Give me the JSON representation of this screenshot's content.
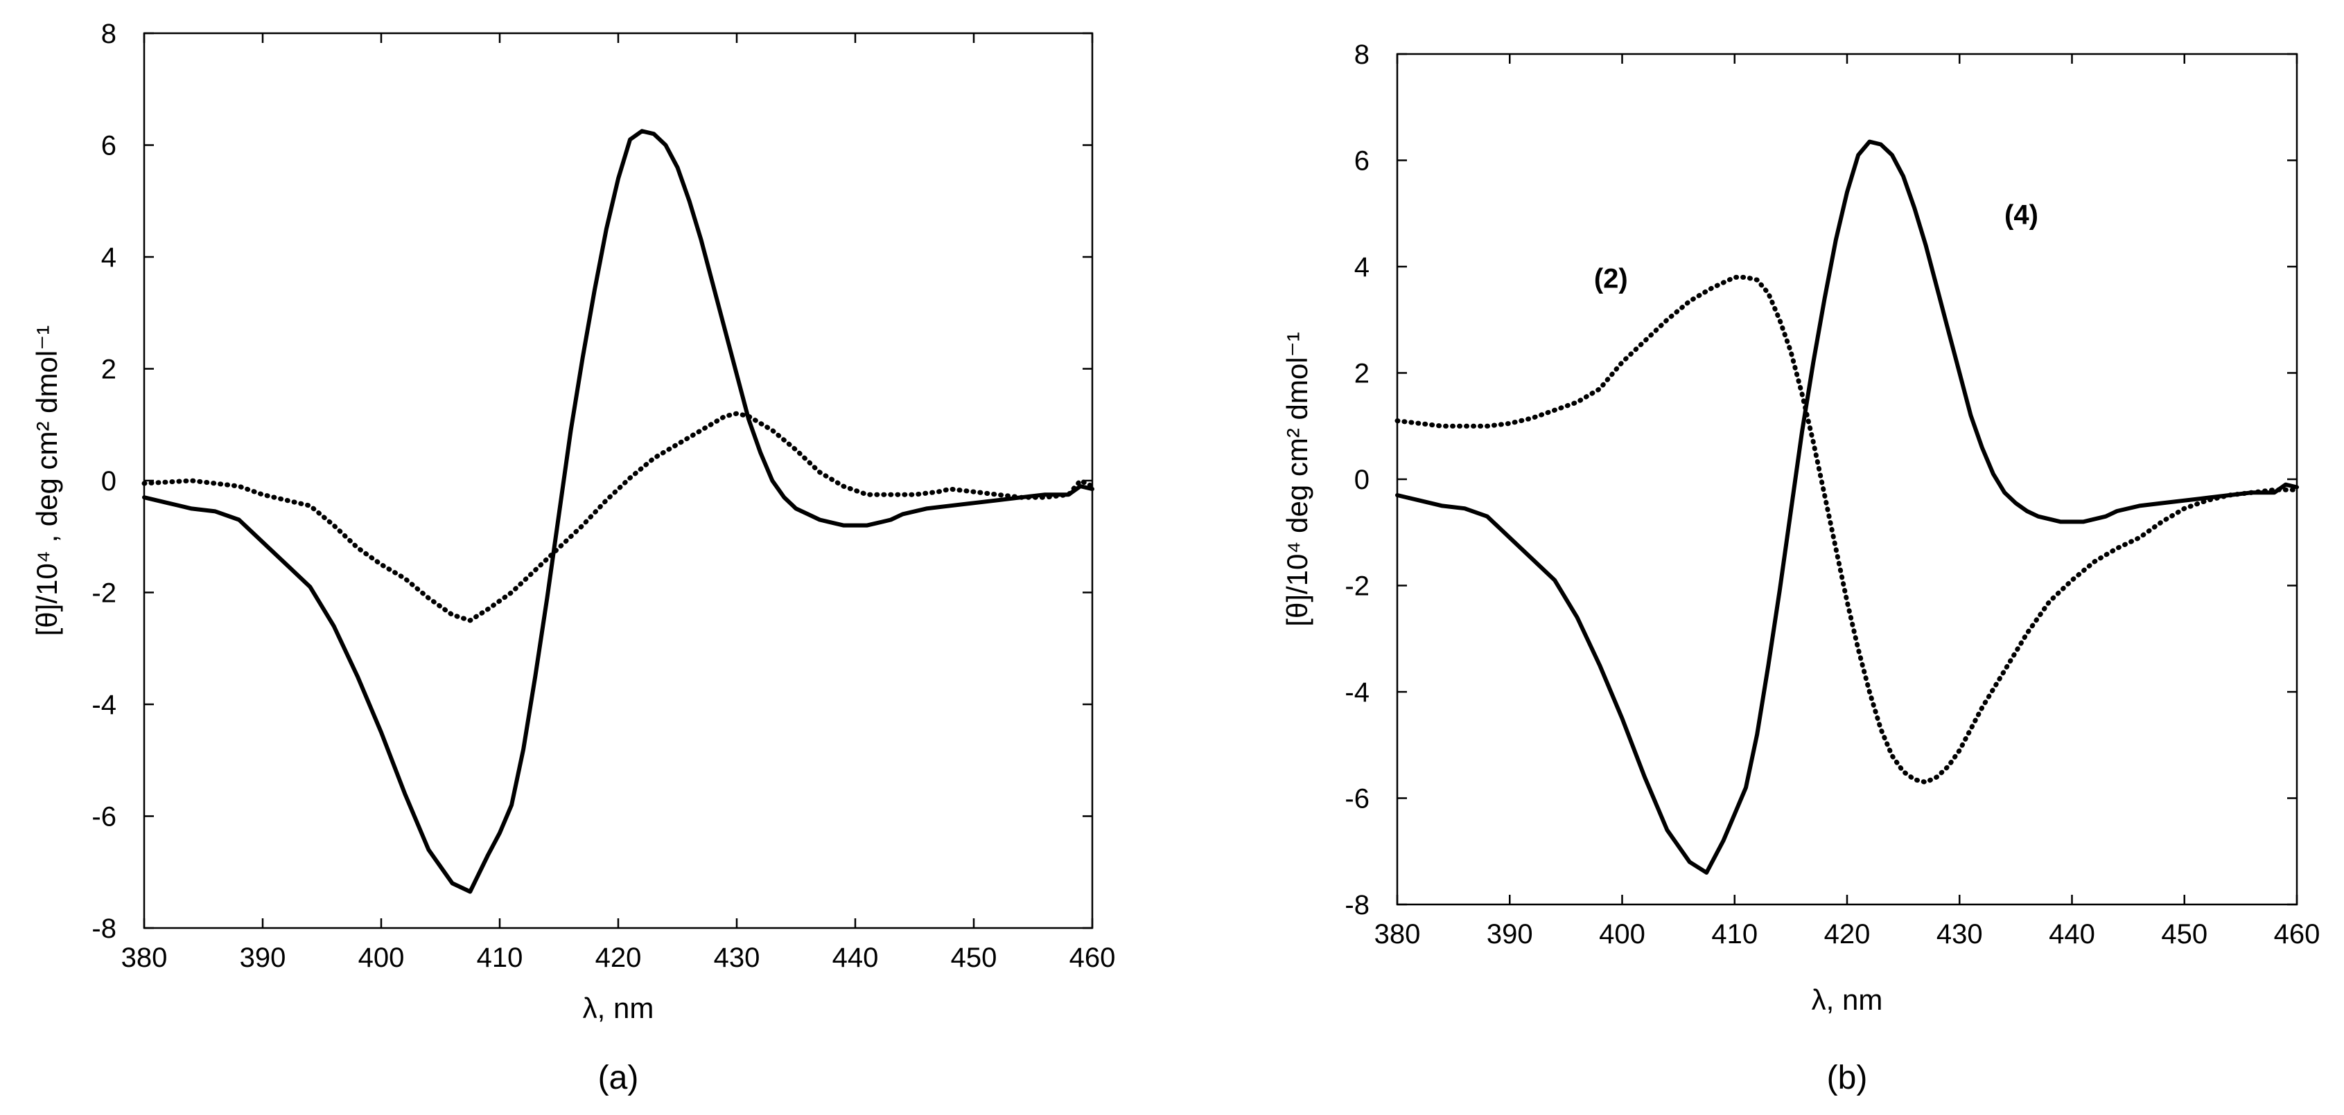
{
  "chart_data": [
    {
      "id": "a",
      "type": "line",
      "caption": "(a)",
      "title": "",
      "xlabel": "λ, nm",
      "ylabel": "[θ]/10⁴ , deg cm² dmol⁻¹",
      "xlim": [
        380,
        460
      ],
      "ylim": [
        -8,
        8
      ],
      "xticks": [
        380,
        390,
        400,
        410,
        420,
        430,
        440,
        450,
        460
      ],
      "yticks": [
        -8,
        -6,
        -4,
        -2,
        0,
        2,
        4,
        6,
        8
      ],
      "grid": false,
      "annotations": [],
      "series": [
        {
          "name": "solid",
          "style": "solid",
          "color": "#000000",
          "x": [
            380,
            382,
            384,
            386,
            388,
            390,
            392,
            394,
            396,
            398,
            400,
            402,
            404,
            406,
            407.5,
            409,
            410,
            411,
            412,
            413,
            414,
            415,
            416,
            417,
            418,
            419,
            420,
            421,
            422,
            423,
            424,
            425,
            426,
            427,
            428,
            429,
            430,
            431,
            432,
            433,
            434,
            435,
            436,
            437,
            438,
            439,
            440,
            441,
            442,
            443,
            444,
            446,
            448,
            450,
            452,
            454,
            456,
            458,
            459,
            460
          ],
          "y": [
            -0.3,
            -0.4,
            -0.5,
            -0.55,
            -0.7,
            -1.1,
            -1.5,
            -1.9,
            -2.6,
            -3.5,
            -4.5,
            -5.6,
            -6.6,
            -7.2,
            -7.35,
            -6.7,
            -6.3,
            -5.8,
            -4.8,
            -3.5,
            -2.1,
            -0.6,
            0.9,
            2.2,
            3.4,
            4.5,
            5.4,
            6.1,
            6.25,
            6.2,
            6.0,
            5.6,
            5.0,
            4.3,
            3.5,
            2.7,
            1.9,
            1.1,
            0.5,
            0.0,
            -0.3,
            -0.5,
            -0.6,
            -0.7,
            -0.75,
            -0.8,
            -0.8,
            -0.8,
            -0.75,
            -0.7,
            -0.6,
            -0.5,
            -0.45,
            -0.4,
            -0.35,
            -0.3,
            -0.25,
            -0.25,
            -0.1,
            -0.15
          ]
        },
        {
          "name": "dotted",
          "style": "dotted",
          "color": "#000000",
          "x": [
            380,
            384,
            386,
            388,
            390,
            392,
            394,
            396,
            398,
            400,
            402,
            404,
            406,
            407.5,
            409,
            411,
            413,
            415,
            417,
            419,
            421,
            423,
            425,
            427,
            429,
            430,
            431,
            433,
            435,
            437,
            439,
            441,
            443,
            445,
            447,
            448,
            450,
            452,
            454,
            456,
            458,
            459,
            460
          ],
          "y": [
            -0.05,
            0.0,
            -0.05,
            -0.1,
            -0.25,
            -0.35,
            -0.45,
            -0.8,
            -1.2,
            -1.5,
            -1.75,
            -2.1,
            -2.4,
            -2.5,
            -2.3,
            -2.0,
            -1.6,
            -1.2,
            -0.8,
            -0.35,
            0.05,
            0.4,
            0.65,
            0.9,
            1.15,
            1.2,
            1.15,
            0.9,
            0.55,
            0.15,
            -0.1,
            -0.25,
            -0.25,
            -0.25,
            -0.2,
            -0.15,
            -0.2,
            -0.25,
            -0.3,
            -0.3,
            -0.25,
            0.0,
            -0.1
          ]
        }
      ]
    },
    {
      "id": "b",
      "type": "line",
      "caption": "(b)",
      "title": "",
      "xlabel": "λ, nm",
      "ylabel": "[θ]/10⁴ deg cm² dmol⁻¹",
      "xlim": [
        380,
        460
      ],
      "ylim": [
        -8,
        8
      ],
      "xticks": [
        380,
        390,
        400,
        410,
        420,
        430,
        440,
        450,
        460
      ],
      "yticks": [
        -8,
        -6,
        -4,
        -2,
        0,
        2,
        4,
        6,
        8
      ],
      "grid": false,
      "annotations": [
        {
          "text": "(2)",
          "x": 399,
          "y": 3.6
        },
        {
          "text": "(4)",
          "x": 435.5,
          "y": 4.8
        }
      ],
      "series": [
        {
          "name": "(4)",
          "style": "solid",
          "color": "#000000",
          "x": [
            380,
            382,
            384,
            386,
            388,
            390,
            392,
            394,
            396,
            398,
            400,
            402,
            404,
            406,
            407.5,
            409,
            410,
            411,
            412,
            413,
            414,
            415,
            416,
            417,
            418,
            419,
            420,
            421,
            422,
            423,
            424,
            425,
            426,
            427,
            428,
            429,
            430,
            431,
            432,
            433,
            434,
            435,
            436,
            437,
            438,
            439,
            440,
            441,
            442,
            443,
            444,
            446,
            448,
            450,
            452,
            454,
            456,
            458,
            459,
            460
          ],
          "y": [
            -0.3,
            -0.4,
            -0.5,
            -0.55,
            -0.7,
            -1.1,
            -1.5,
            -1.9,
            -2.6,
            -3.5,
            -4.5,
            -5.6,
            -6.6,
            -7.2,
            -7.4,
            -6.8,
            -6.3,
            -5.8,
            -4.8,
            -3.5,
            -2.1,
            -0.6,
            0.9,
            2.2,
            3.4,
            4.5,
            5.4,
            6.1,
            6.35,
            6.3,
            6.1,
            5.7,
            5.1,
            4.4,
            3.6,
            2.8,
            2.0,
            1.2,
            0.6,
            0.1,
            -0.25,
            -0.45,
            -0.6,
            -0.7,
            -0.75,
            -0.8,
            -0.8,
            -0.8,
            -0.75,
            -0.7,
            -0.6,
            -0.5,
            -0.45,
            -0.4,
            -0.35,
            -0.3,
            -0.25,
            -0.25,
            -0.1,
            -0.15
          ]
        },
        {
          "name": "(2)",
          "style": "dotted",
          "color": "#000000",
          "x": [
            380,
            382,
            384,
            386,
            388,
            390,
            392,
            394,
            396,
            398,
            400,
            402,
            404,
            406,
            408,
            410,
            411,
            412,
            413,
            414,
            415,
            416,
            417,
            418,
            419,
            420,
            421,
            422,
            423,
            424,
            425,
            426,
            427,
            428,
            429,
            430,
            431,
            432,
            434,
            436,
            438,
            440,
            442,
            444,
            446,
            448,
            450,
            452,
            454,
            456,
            458,
            460
          ],
          "y": [
            1.1,
            1.05,
            1.0,
            1.0,
            1.0,
            1.05,
            1.15,
            1.3,
            1.45,
            1.7,
            2.2,
            2.6,
            3.0,
            3.35,
            3.6,
            3.8,
            3.8,
            3.75,
            3.5,
            3.0,
            2.4,
            1.6,
            0.7,
            -0.3,
            -1.3,
            -2.3,
            -3.2,
            -4.0,
            -4.7,
            -5.2,
            -5.5,
            -5.65,
            -5.7,
            -5.6,
            -5.4,
            -5.1,
            -4.7,
            -4.3,
            -3.6,
            -2.9,
            -2.3,
            -1.9,
            -1.55,
            -1.3,
            -1.1,
            -0.8,
            -0.55,
            -0.4,
            -0.3,
            -0.25,
            -0.2,
            -0.2
          ]
        }
      ]
    }
  ]
}
